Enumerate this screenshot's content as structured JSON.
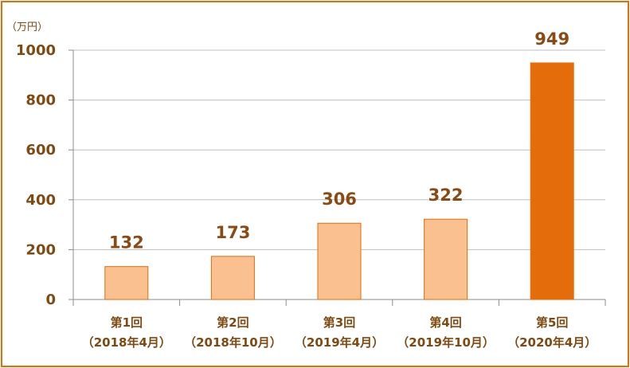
{
  "chart_data": {
    "type": "bar",
    "unit_label": "（万円）",
    "categories": [
      [
        "第1回",
        "（2018年4月）"
      ],
      [
        "第2回",
        "（2018年10月）"
      ],
      [
        "第3回",
        "（2019年4月）"
      ],
      [
        "第4回",
        "（2019年10月）"
      ],
      [
        "第5回",
        "（2020年4月）"
      ]
    ],
    "values": [
      132,
      173,
      306,
      322,
      949
    ],
    "ylim": [
      0,
      1000
    ],
    "yticks": [
      0,
      200,
      400,
      600,
      800,
      1000
    ],
    "grid": true,
    "colors": {
      "bar": "#fac090",
      "bar_stroke": "#e46c0a",
      "highlight_bar": "#e46c0a",
      "frame": "#e46c0a",
      "text": "#7f4a12",
      "grid": "#bfbfbf"
    },
    "highlight_index": 4
  }
}
